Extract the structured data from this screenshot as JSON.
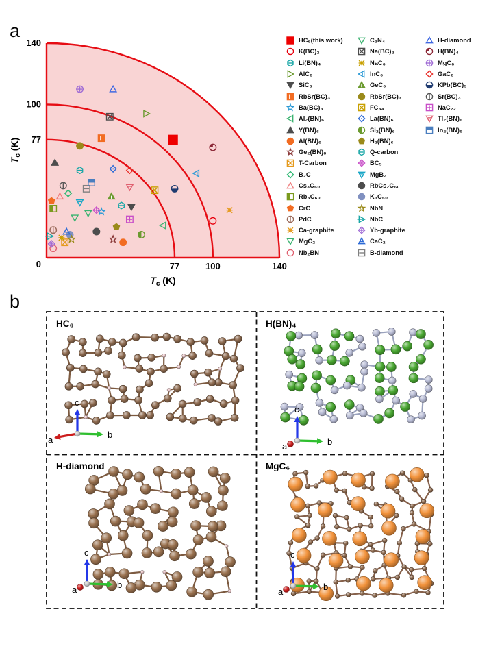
{
  "figure": {
    "panel_a_letter": "a",
    "panel_b_letter": "b"
  },
  "chart_data": {
    "type": "scatter",
    "title": "",
    "xlabel": {
      "symbol": "T",
      "subscript": "c",
      "unit": " (K)"
    },
    "ylabel": {
      "symbol": "T",
      "subscript": "c",
      "unit": " (K)"
    },
    "xlim": [
      0,
      140
    ],
    "ylim": [
      0,
      140
    ],
    "xticks": [
      {
        "v": 0,
        "label": "0"
      },
      {
        "v": 77,
        "label": "77"
      },
      {
        "v": 100,
        "label": "100"
      },
      {
        "v": 140,
        "label": "140"
      }
    ],
    "yticks": [
      {
        "v": 140,
        "label": "140"
      },
      {
        "v": 100,
        "label": "100"
      },
      {
        "v": 77,
        "label": "77"
      },
      {
        "v": 0,
        "label": "0"
      }
    ],
    "reference_arcs": [
      77,
      100,
      140
    ],
    "arc_color": "#e60d14",
    "fill_color": "#f9d4d4",
    "grid": false,
    "legend_position": "right",
    "legend_columns": [
      20,
      20,
      9
    ],
    "materials": [
      {
        "label": "HC₆(this work)",
        "marker": "sq:f",
        "color": "#ee0000",
        "x": 76,
        "y": 77,
        "size": 13
      },
      {
        "label": "K(BC)₂",
        "marker": "ci:o",
        "color": "#e8000d",
        "x": 100,
        "y": 24
      },
      {
        "label": "Li(BN)₄",
        "marker": "hx:hline",
        "color": "#1aa7a7",
        "x": 20,
        "y": 57
      },
      {
        "label": "AlC₆",
        "marker": "tr:o",
        "color": "#6b9a2f",
        "x": 60,
        "y": 94
      },
      {
        "label": "SiC₆",
        "marker": "td:f",
        "color": "#4d4d4d",
        "x": 51,
        "y": 33
      },
      {
        "label": "RbSr(BC)₃",
        "marker": "sq:vbar",
        "color": "#f26c22",
        "x": 33,
        "y": 78
      },
      {
        "label": "Ba(BC)₃",
        "marker": "st:o",
        "color": "#2e9bd6",
        "x": 33,
        "y": 30
      },
      {
        "label": "Al₂(BN)₆",
        "marker": "tl:o",
        "color": "#3cb371",
        "x": 70,
        "y": 21
      },
      {
        "label": "Y(BN)₆",
        "marker": "tu:f",
        "color": "#4d4d4d",
        "x": 5,
        "y": 62
      },
      {
        "label": "Al(BN)₆",
        "marker": "ci:f",
        "color": "#f26c22",
        "x": 46,
        "y": 10
      },
      {
        "label": "Ge₂(BN)₈",
        "marker": "st:o",
        "color": "#8b3a3a",
        "x": 40,
        "y": 12
      },
      {
        "label": "T-Carbon",
        "marker": "sq:x",
        "color": "#e59a1c",
        "x": 11,
        "y": 10
      },
      {
        "label": "B₂C",
        "marker": "di:o",
        "color": "#2eb872",
        "x": 13,
        "y": 42
      },
      {
        "label": "Cs₃C₆₀",
        "marker": "tu:o",
        "color": "#f08080",
        "x": 8,
        "y": 40
      },
      {
        "label": "Rb₃C₆₀",
        "marker": "sq:halfl",
        "color": "#7a9a1e",
        "x": 4,
        "y": 32
      },
      {
        "label": "CrC",
        "marker": "pe:f",
        "color": "#f26c22",
        "x": 3,
        "y": 37
      },
      {
        "label": "PdC",
        "marker": "ci:vline",
        "color": "#9a6a5a",
        "x": 4,
        "y": 18
      },
      {
        "label": "Ca-graphite",
        "marker": "xx",
        "color": "#e59a1c",
        "x": 110,
        "y": 31
      },
      {
        "label": "MgC₂",
        "marker": "td:o",
        "color": "#3cb371",
        "x": 17,
        "y": 26
      },
      {
        "label": "Nb₂BN",
        "marker": "ci:o",
        "color": "#e06070",
        "x": 4,
        "y": 6
      },
      {
        "label": "C₃N₄",
        "marker": "td:o",
        "color": "#3cb371",
        "x": 25,
        "y": 29
      },
      {
        "label": "Na(BC)₂",
        "marker": "sq:x",
        "color": "#4d4d4d",
        "x": 38,
        "y": 92
      },
      {
        "label": "NaC₆",
        "marker": "xx",
        "color": "#c8a000",
        "x": 9,
        "y": 13
      },
      {
        "label": "InC₆",
        "marker": "tl:vline",
        "color": "#2e9bd6",
        "x": 90,
        "y": 55
      },
      {
        "label": "GeC₆",
        "marker": "tu:fline",
        "color": "#6b9a2f",
        "x": 39,
        "y": 40
      },
      {
        "label": "RbSr(BC)₃",
        "marker": "ci:f",
        "color": "#9a8a1a",
        "x": 20,
        "y": 73
      },
      {
        "label": "FC₃₄",
        "marker": "sq:x",
        "color": "#c8a000",
        "x": 65,
        "y": 44
      },
      {
        "label": "La(BN)₆",
        "marker": "di:dot",
        "color": "#2e6bd6",
        "x": 40,
        "y": 58
      },
      {
        "label": "Si₂(BN)₆",
        "marker": "ci:halfl",
        "color": "#6b9a2f",
        "x": 57,
        "y": 15
      },
      {
        "label": "H₂(BN)₆",
        "marker": "pe:f",
        "color": "#9a8a1a",
        "x": 42,
        "y": 20
      },
      {
        "label": "Q-carbon",
        "marker": "hx:hline",
        "color": "#1aa7a7",
        "x": 45,
        "y": 34
      },
      {
        "label": "BC₅",
        "marker": "di:plus",
        "color": "#c84fc8",
        "x": 30,
        "y": 31
      },
      {
        "label": "MgB₂",
        "marker": "td:hline",
        "color": "#1aa7c7",
        "x": 20,
        "y": 36
      },
      {
        "label": "RbCs₂C₆₀",
        "marker": "ci:f",
        "color": "#4d4d4d",
        "x": 30,
        "y": 17
      },
      {
        "label": "K₃C₆₀",
        "marker": "ci:f",
        "color": "#8090c0",
        "x": 14,
        "y": 15
      },
      {
        "label": "NbN",
        "marker": "st:o",
        "color": "#9a8a1a",
        "x": 15,
        "y": 12
      },
      {
        "label": "NbC",
        "marker": "tr:arrow",
        "color": "#1aa7a7",
        "x": 2,
        "y": 14
      },
      {
        "label": "Yb-graphite",
        "marker": "di:plus",
        "color": "#a06cd5",
        "x": 3,
        "y": 9
      },
      {
        "label": "CaC₂",
        "marker": "tu:hline",
        "color": "#2e6bd6",
        "x": 12,
        "y": 17
      },
      {
        "label": "B-diamond",
        "marker": "sq:hline",
        "color": "#808080",
        "x": 24,
        "y": 45
      },
      {
        "label": "H-diamond",
        "marker": "tu:o",
        "color": "#4169e1",
        "x": 40,
        "y": 110
      },
      {
        "label": "H(BN)₄",
        "marker": "ci:quarter",
        "color": "#8b2635",
        "x": 100,
        "y": 72
      },
      {
        "label": "MgC₆",
        "marker": "ci:plus",
        "color": "#a06cd5",
        "x": 20,
        "y": 110
      },
      {
        "label": "GaC₆",
        "marker": "di:o",
        "color": "#e8302a",
        "x": 50,
        "y": 57
      },
      {
        "label": "KPb(BC)₃",
        "marker": "ci:halfb",
        "color": "#1f3b70",
        "x": 77,
        "y": 45
      },
      {
        "label": "Sr(BC)₃",
        "marker": "ci:vline",
        "color": "#555555",
        "x": 10,
        "y": 47
      },
      {
        "label": "NaC₂₂",
        "marker": "sq:plus",
        "color": "#c84fc8",
        "x": 50,
        "y": 25
      },
      {
        "label": "Tl₂(BN)₆",
        "marker": "td:hline",
        "color": "#e06070",
        "x": 50,
        "y": 46
      },
      {
        "label": "In₂(BN)₆",
        "marker": "sq:halft",
        "color": "#4a7ebf",
        "x": 27,
        "y": 49
      }
    ]
  },
  "panel_b": {
    "axis_triad": {
      "a": "a",
      "b": "b",
      "c": "c",
      "a_color": "#cc1d1d",
      "b_color": "#2fbf2f",
      "c_color": "#2438e8"
    },
    "structures": [
      {
        "label": "HC₆",
        "a_style": "arrow",
        "bond": "#7c5a40",
        "atoms": [
          {
            "color": "#8d6a4f",
            "r": 5.5
          },
          {
            "color": "#ecc9cb",
            "r": 2.6
          }
        ]
      },
      {
        "label": "H(BN)₄",
        "a_style": "dot",
        "bond": "#9aa2bd",
        "atoms": [
          {
            "color": "#4aa832",
            "r": 7
          },
          {
            "color": "#b9bdd6",
            "r": 5.5
          }
        ]
      },
      {
        "label": "H-diamond",
        "a_style": "dot",
        "bond": "#7c5a40",
        "atoms": [
          {
            "color": "#99714f",
            "r": 7.5
          },
          {
            "color": "#ecc9cb",
            "r": 2.4
          }
        ]
      },
      {
        "label": "MgC₆",
        "a_style": "dot",
        "bond": "#85604a",
        "atoms": [
          {
            "color": "#f2933c",
            "r": 10.5
          },
          {
            "color": "#8d6a4f",
            "r": 3.4
          }
        ]
      }
    ]
  }
}
